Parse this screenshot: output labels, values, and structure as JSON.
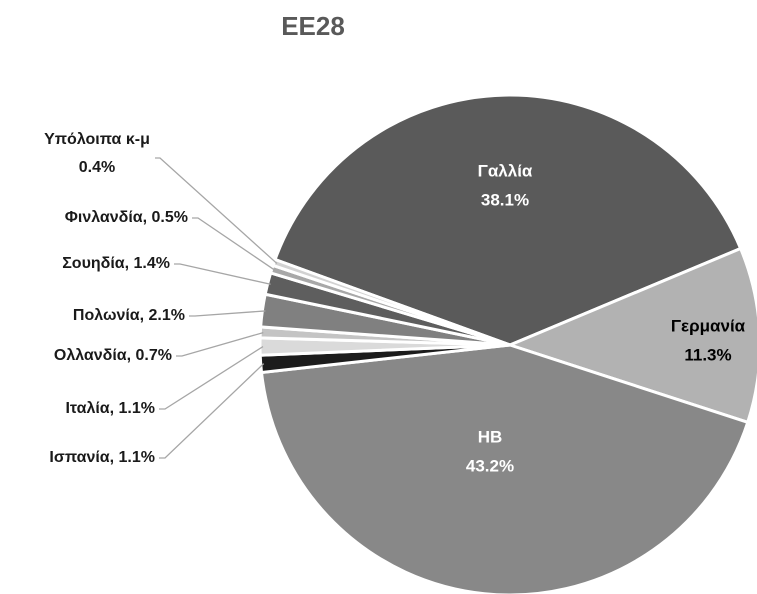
{
  "chart_data": {
    "type": "pie",
    "title": "EE28",
    "categories": [
      "Γαλλία",
      "Γερμανία",
      "HB",
      "Ισπανία",
      "Ιταλία",
      "Ολλανδία",
      "Πολωνία",
      "Σουηδία",
      "Φινλανδία",
      "Υπόλοιπα κ-μ"
    ],
    "values": [
      38.1,
      11.3,
      43.2,
      1.1,
      1.1,
      0.7,
      2.1,
      1.4,
      0.5,
      0.4
    ],
    "value_labels": [
      "38.1%",
      "11.3%",
      "43.2%",
      "1.1%",
      "1.1%",
      "0.7%",
      "2.1%",
      "1.4%",
      "0.5%",
      "0.4%"
    ],
    "colors": [
      "#5a5a5a",
      "#b2b2b2",
      "#888888",
      "#1c1c1c",
      "#dadada",
      "#c4c4c4",
      "#808080",
      "#5e5e5e",
      "#a8a8a8",
      "#d2d2d2"
    ]
  }
}
